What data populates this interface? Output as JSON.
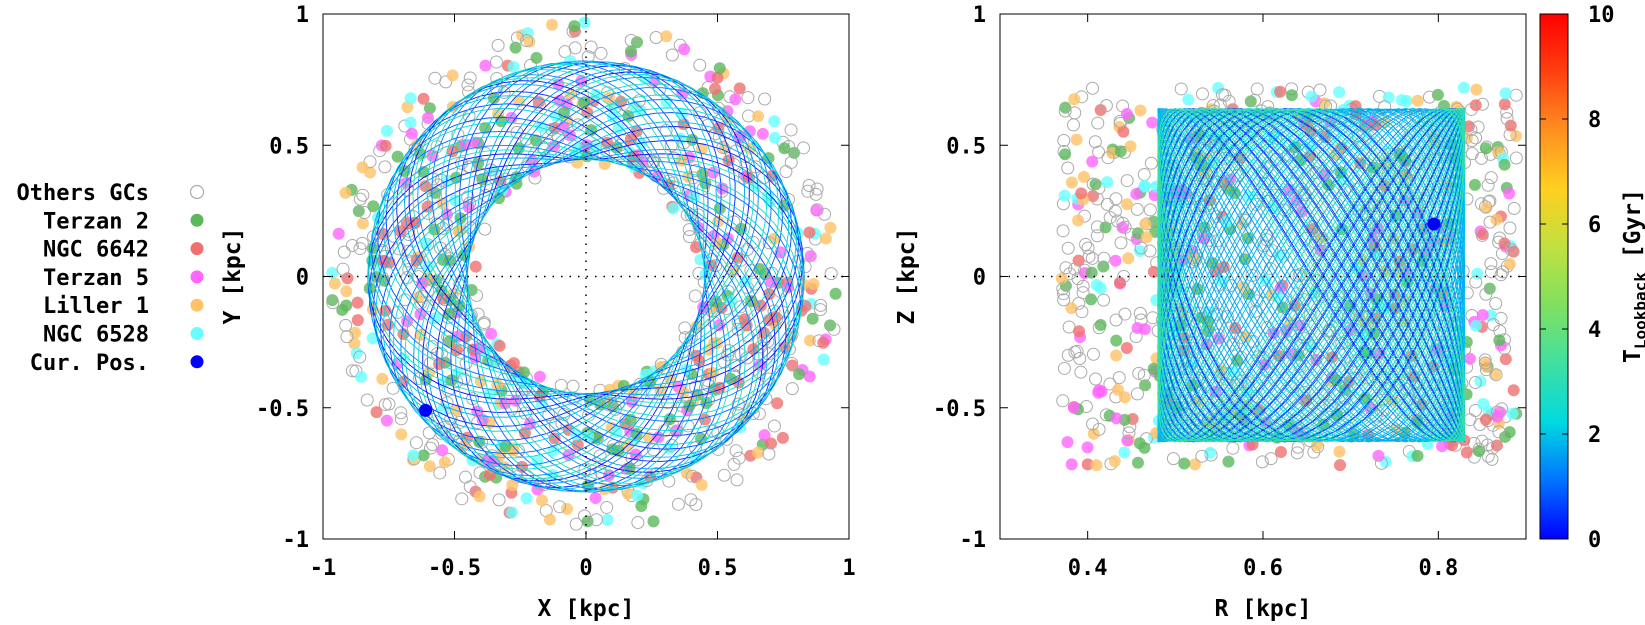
{
  "legend": {
    "entries": [
      {
        "label": "Others GCs",
        "color": "#aaaaaa",
        "style": "open-circle"
      },
      {
        "label": "Terzan 2",
        "color": "#5cb85c",
        "style": "filled-circle"
      },
      {
        "label": "NGC 6642",
        "color": "#f07070",
        "style": "filled-circle"
      },
      {
        "label": "Terzan 5",
        "color": "#ff66ff",
        "style": "filled-circle"
      },
      {
        "label": "Liller 1",
        "color": "#ffc266",
        "style": "filled-circle"
      },
      {
        "label": "NGC 6528",
        "color": "#66ffff",
        "style": "filled-circle"
      },
      {
        "label": "Cur. Pos.",
        "color": "#0000ff",
        "style": "filled-circle"
      }
    ]
  },
  "chart_data": [
    {
      "type": "scatter",
      "panel": "left",
      "title": "",
      "xlabel": "X [kpc]",
      "ylabel": "Y [kpc]",
      "xlim": [
        -1,
        1
      ],
      "ylim": [
        -1,
        1
      ],
      "xticks": [
        "-1",
        "-0.5",
        "0",
        "0.5",
        "1"
      ],
      "yticks": [
        "-1",
        "-0.5",
        "0",
        "0.5",
        "1"
      ],
      "orbit": {
        "shape": "rosette",
        "r_min": 0.45,
        "r_max": 0.83,
        "lines": 40
      },
      "current_position": {
        "x": -0.61,
        "y": -0.51
      }
    },
    {
      "type": "scatter",
      "panel": "right",
      "title": "",
      "xlabel": "R [kpc]",
      "ylabel": "Z [kpc]",
      "xlim": [
        0.3,
        0.9
      ],
      "ylim": [
        -1,
        1
      ],
      "xticks": [
        "0.4",
        "0.6",
        "0.8"
      ],
      "yticks": [
        "-1",
        "-0.5",
        "0",
        "0.5",
        "1"
      ],
      "orbit": {
        "shape": "box",
        "r_min": 0.48,
        "r_max": 0.83,
        "z_min": -0.63,
        "z_max": 0.64,
        "lines": 40
      },
      "current_position": {
        "x": 0.795,
        "y": 0.2
      }
    }
  ],
  "colorbar": {
    "label": "T",
    "label_sub": "Lookback",
    "label_unit": " [Gyr]",
    "min": 0,
    "max": 10,
    "ticks": [
      "0",
      "2",
      "4",
      "6",
      "8",
      "10"
    ],
    "colors": [
      "#0000ff",
      "#0073ff",
      "#00d9e0",
      "#40e0a0",
      "#80e060",
      "#c0e040",
      "#ffd020",
      "#ff9020",
      "#ff4010",
      "#ff0000"
    ]
  }
}
